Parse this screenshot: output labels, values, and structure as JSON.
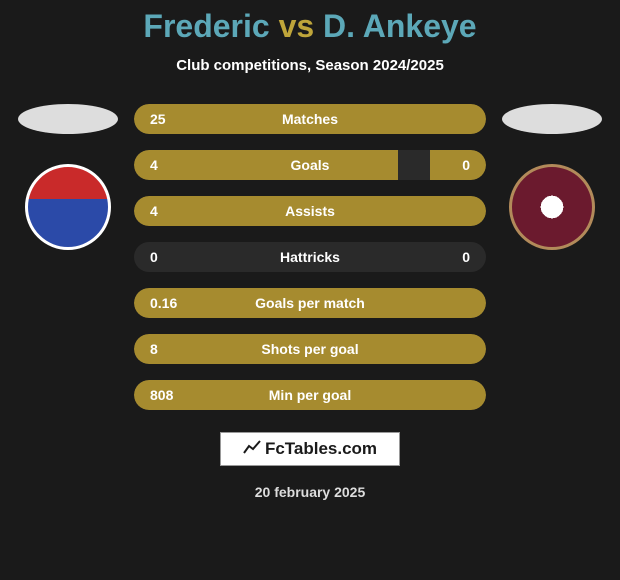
{
  "title": {
    "player1": "Frederic",
    "vs": "vs",
    "player2": "D. Ankeye",
    "color_player": "#5ca8b8",
    "color_vs": "#bfa53a"
  },
  "subtitle": "Club competitions, Season 2024/2025",
  "branding": {
    "icon": "📊",
    "text": "FcTables.com"
  },
  "date": "20 february 2025",
  "colors": {
    "background": "#1a1a1a",
    "bar_fill": "#a68b2f",
    "bar_empty": "#2a2a2a",
    "text": "#ffffff"
  },
  "crest_left": {
    "name": "otelul-galati",
    "bg_top": "#c92a2a",
    "bg_bottom": "#2b4aa8",
    "border": "#ffffff"
  },
  "crest_right": {
    "name": "rapid",
    "bg": "#6b1a2e",
    "border": "#b28a5a"
  },
  "stats": [
    {
      "label": "Matches",
      "left_val": "25",
      "right_val": "",
      "left_pct": 100,
      "right_pct": 0
    },
    {
      "label": "Goals",
      "left_val": "4",
      "right_val": "0",
      "left_pct": 75,
      "right_pct": 16
    },
    {
      "label": "Assists",
      "left_val": "4",
      "right_val": "",
      "left_pct": 100,
      "right_pct": 0
    },
    {
      "label": "Hattricks",
      "left_val": "0",
      "right_val": "0",
      "left_pct": 0,
      "right_pct": 0
    },
    {
      "label": "Goals per match",
      "left_val": "0.16",
      "right_val": "",
      "left_pct": 100,
      "right_pct": 0
    },
    {
      "label": "Shots per goal",
      "left_val": "8",
      "right_val": "",
      "left_pct": 100,
      "right_pct": 0
    },
    {
      "label": "Min per goal",
      "left_val": "808",
      "right_val": "",
      "left_pct": 100,
      "right_pct": 0
    }
  ]
}
